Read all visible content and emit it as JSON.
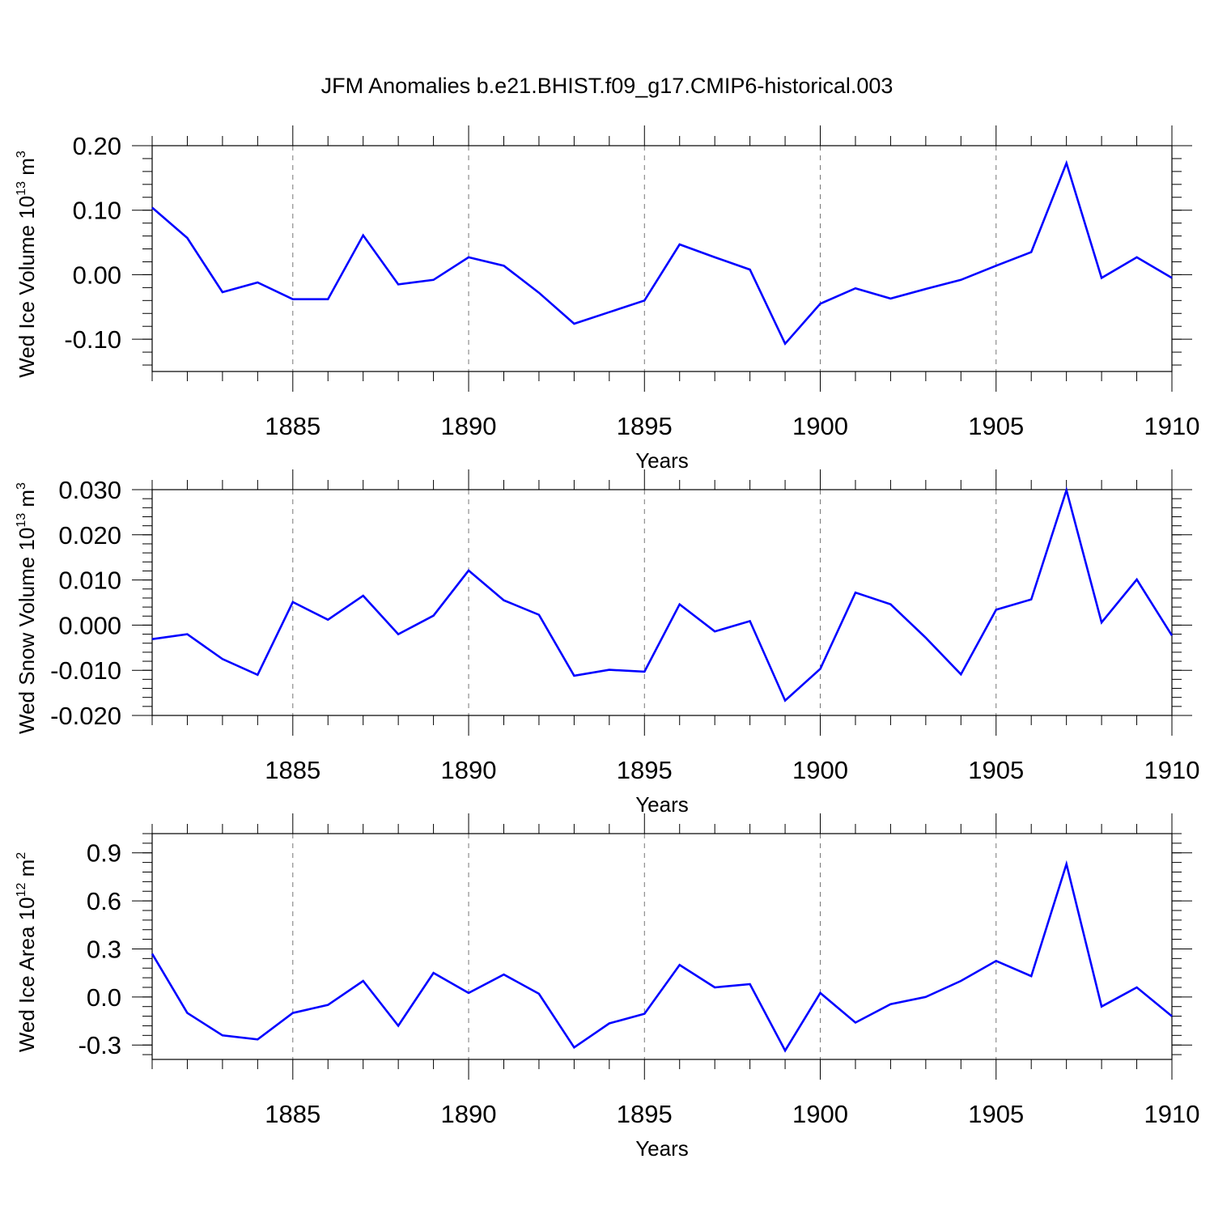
{
  "title": "JFM Anomalies b.e21.BHIST.f09_g17.CMIP6-historical.003",
  "colors": {
    "series": "#0000ff",
    "axis": "#000000",
    "grid": "#777777"
  },
  "chart_data": [
    {
      "type": "line",
      "title": "JFM Anomalies b.e21.BHIST.f09_g17.CMIP6-historical.003",
      "xlabel": "Years",
      "ylabel_main": "Wed Ice Volume 10",
      "ylabel_exp": "13",
      "ylabel_unit": " m",
      "ylabel_unit_exp": "3",
      "xlim": [
        1881,
        1910
      ],
      "ylim": [
        -0.15,
        0.2
      ],
      "yticks": [
        -0.1,
        0.0,
        0.1,
        0.2
      ],
      "ytick_labels": [
        "-0.10",
        "0.00",
        "0.10",
        "0.20"
      ],
      "yminor_step": 0.02,
      "xticks": [
        1885,
        1890,
        1895,
        1900,
        1905,
        1910
      ],
      "xtick_labels": [
        "1885",
        "1890",
        "1895",
        "1900",
        "1905",
        "1910"
      ],
      "x": [
        1881,
        1882,
        1883,
        1884,
        1885,
        1886,
        1887,
        1888,
        1889,
        1890,
        1891,
        1892,
        1893,
        1894,
        1895,
        1896,
        1897,
        1898,
        1899,
        1900,
        1901,
        1902,
        1903,
        1904,
        1905,
        1906,
        1907,
        1908,
        1909,
        1910
      ],
      "values": [
        0.104,
        0.057,
        -0.027,
        -0.012,
        -0.038,
        -0.038,
        0.061,
        -0.015,
        -0.008,
        0.027,
        0.014,
        -0.028,
        -0.076,
        -0.058,
        -0.04,
        0.047,
        0.027,
        0.008,
        -0.107,
        -0.045,
        -0.021,
        -0.037,
        -0.022,
        -0.008,
        0.014,
        0.035,
        0.173,
        -0.005,
        0.027,
        -0.005
      ]
    },
    {
      "type": "line",
      "xlabel": "Years",
      "ylabel_main": "Wed Snow Volume 10",
      "ylabel_exp": "13",
      "ylabel_unit": " m",
      "ylabel_unit_exp": "3",
      "xlim": [
        1881,
        1910
      ],
      "ylim": [
        -0.02,
        0.03
      ],
      "yticks": [
        -0.02,
        -0.01,
        0.0,
        0.01,
        0.02,
        0.03
      ],
      "ytick_labels": [
        "-0.020",
        "-0.010",
        "0.000",
        "0.010",
        "0.020",
        "0.030"
      ],
      "yminor_step": 0.002,
      "xticks": [
        1885,
        1890,
        1895,
        1900,
        1905,
        1910
      ],
      "xtick_labels": [
        "1885",
        "1890",
        "1895",
        "1900",
        "1905",
        "1910"
      ],
      "x": [
        1881,
        1882,
        1883,
        1884,
        1885,
        1886,
        1887,
        1888,
        1889,
        1890,
        1891,
        1892,
        1893,
        1894,
        1895,
        1896,
        1897,
        1898,
        1899,
        1900,
        1901,
        1902,
        1903,
        1904,
        1905,
        1906,
        1907,
        1908,
        1909,
        1910
      ],
      "values": [
        -0.0031,
        -0.002,
        -0.0075,
        -0.011,
        0.0051,
        0.0012,
        0.0065,
        -0.002,
        0.0021,
        0.0121,
        0.0055,
        0.0023,
        -0.0112,
        -0.0099,
        -0.0103,
        0.0046,
        -0.0014,
        0.0009,
        -0.0167,
        -0.0097,
        0.0072,
        0.0046,
        -0.0028,
        -0.0109,
        0.0034,
        0.0057,
        0.0299,
        0.0006,
        0.0101,
        -0.0023
      ]
    },
    {
      "type": "line",
      "xlabel": "Years",
      "ylabel_main": "Wed Ice Area 10",
      "ylabel_exp": "12",
      "ylabel_unit": " m",
      "ylabel_unit_exp": "2",
      "xlim": [
        1881,
        1910
      ],
      "ylim": [
        -0.39,
        1.02
      ],
      "yticks": [
        -0.3,
        0.0,
        0.3,
        0.6,
        0.9
      ],
      "ytick_labels": [
        "-0.3",
        "0.0",
        "0.3",
        "0.6",
        "0.9"
      ],
      "yminor_step": 0.06,
      "xticks": [
        1885,
        1890,
        1895,
        1900,
        1905,
        1910
      ],
      "xtick_labels": [
        "1885",
        "1890",
        "1895",
        "1900",
        "1905",
        "1910"
      ],
      "x": [
        1881,
        1882,
        1883,
        1884,
        1885,
        1886,
        1887,
        1888,
        1889,
        1890,
        1891,
        1892,
        1893,
        1894,
        1895,
        1896,
        1897,
        1898,
        1899,
        1900,
        1901,
        1902,
        1903,
        1904,
        1905,
        1906,
        1907,
        1908,
        1909,
        1910
      ],
      "values": [
        0.27,
        -0.1,
        -0.24,
        -0.265,
        -0.1,
        -0.05,
        0.1,
        -0.18,
        0.15,
        0.025,
        0.14,
        0.02,
        -0.315,
        -0.165,
        -0.105,
        0.2,
        0.06,
        0.08,
        -0.335,
        0.025,
        -0.16,
        -0.045,
        0.0,
        0.1,
        0.225,
        0.13,
        0.83,
        -0.06,
        0.06,
        -0.12
      ]
    }
  ]
}
